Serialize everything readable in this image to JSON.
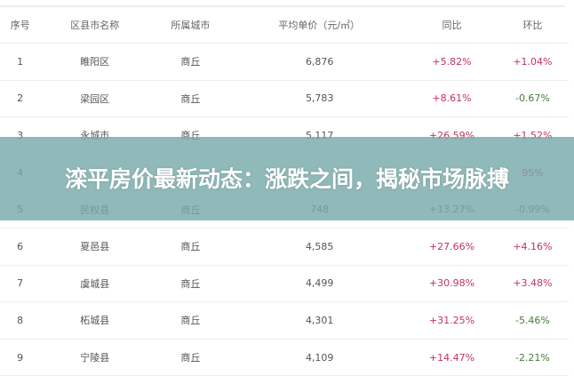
{
  "table": {
    "headers": [
      "序号",
      "区县市名称",
      "所属城市",
      "平均单价（元/㎡）",
      "同比",
      "环比"
    ],
    "rows": [
      [
        "1",
        "睢阳区",
        "商丘",
        "6,876",
        "+5.82%",
        "+1.04%"
      ],
      [
        "2",
        "梁园区",
        "商丘",
        "5,783",
        "+8.61%",
        "-0.67%"
      ],
      [
        "3",
        "永城市",
        "商丘",
        "5,117",
        "+26.59%",
        "+1.52%"
      ],
      [
        "4",
        "",
        "",
        "",
        "",
        "95%"
      ],
      [
        "5",
        "民权县",
        "商丘",
        "748",
        "+13.27%",
        "-0.99%"
      ],
      [
        "6",
        "夏邑县",
        "商丘",
        "4,585",
        "+27.66%",
        "+4.16%"
      ],
      [
        "7",
        "虞城县",
        "商丘",
        "4,499",
        "+30.98%",
        "+3.48%"
      ],
      [
        "8",
        "柘城县",
        "商丘",
        "4,301",
        "+31.25%",
        "-5.46%"
      ],
      [
        "9",
        "宁陵县",
        "商丘",
        "4,109",
        "+14.47%",
        "-2.21%"
      ]
    ]
  },
  "overlay": {
    "title": "滦平房价最新动态：涨跌之间，揭秘市场脉搏"
  },
  "colors": {
    "up": "#c0345a",
    "down": "#4a7a3a",
    "overlay": "#78aaaa"
  }
}
